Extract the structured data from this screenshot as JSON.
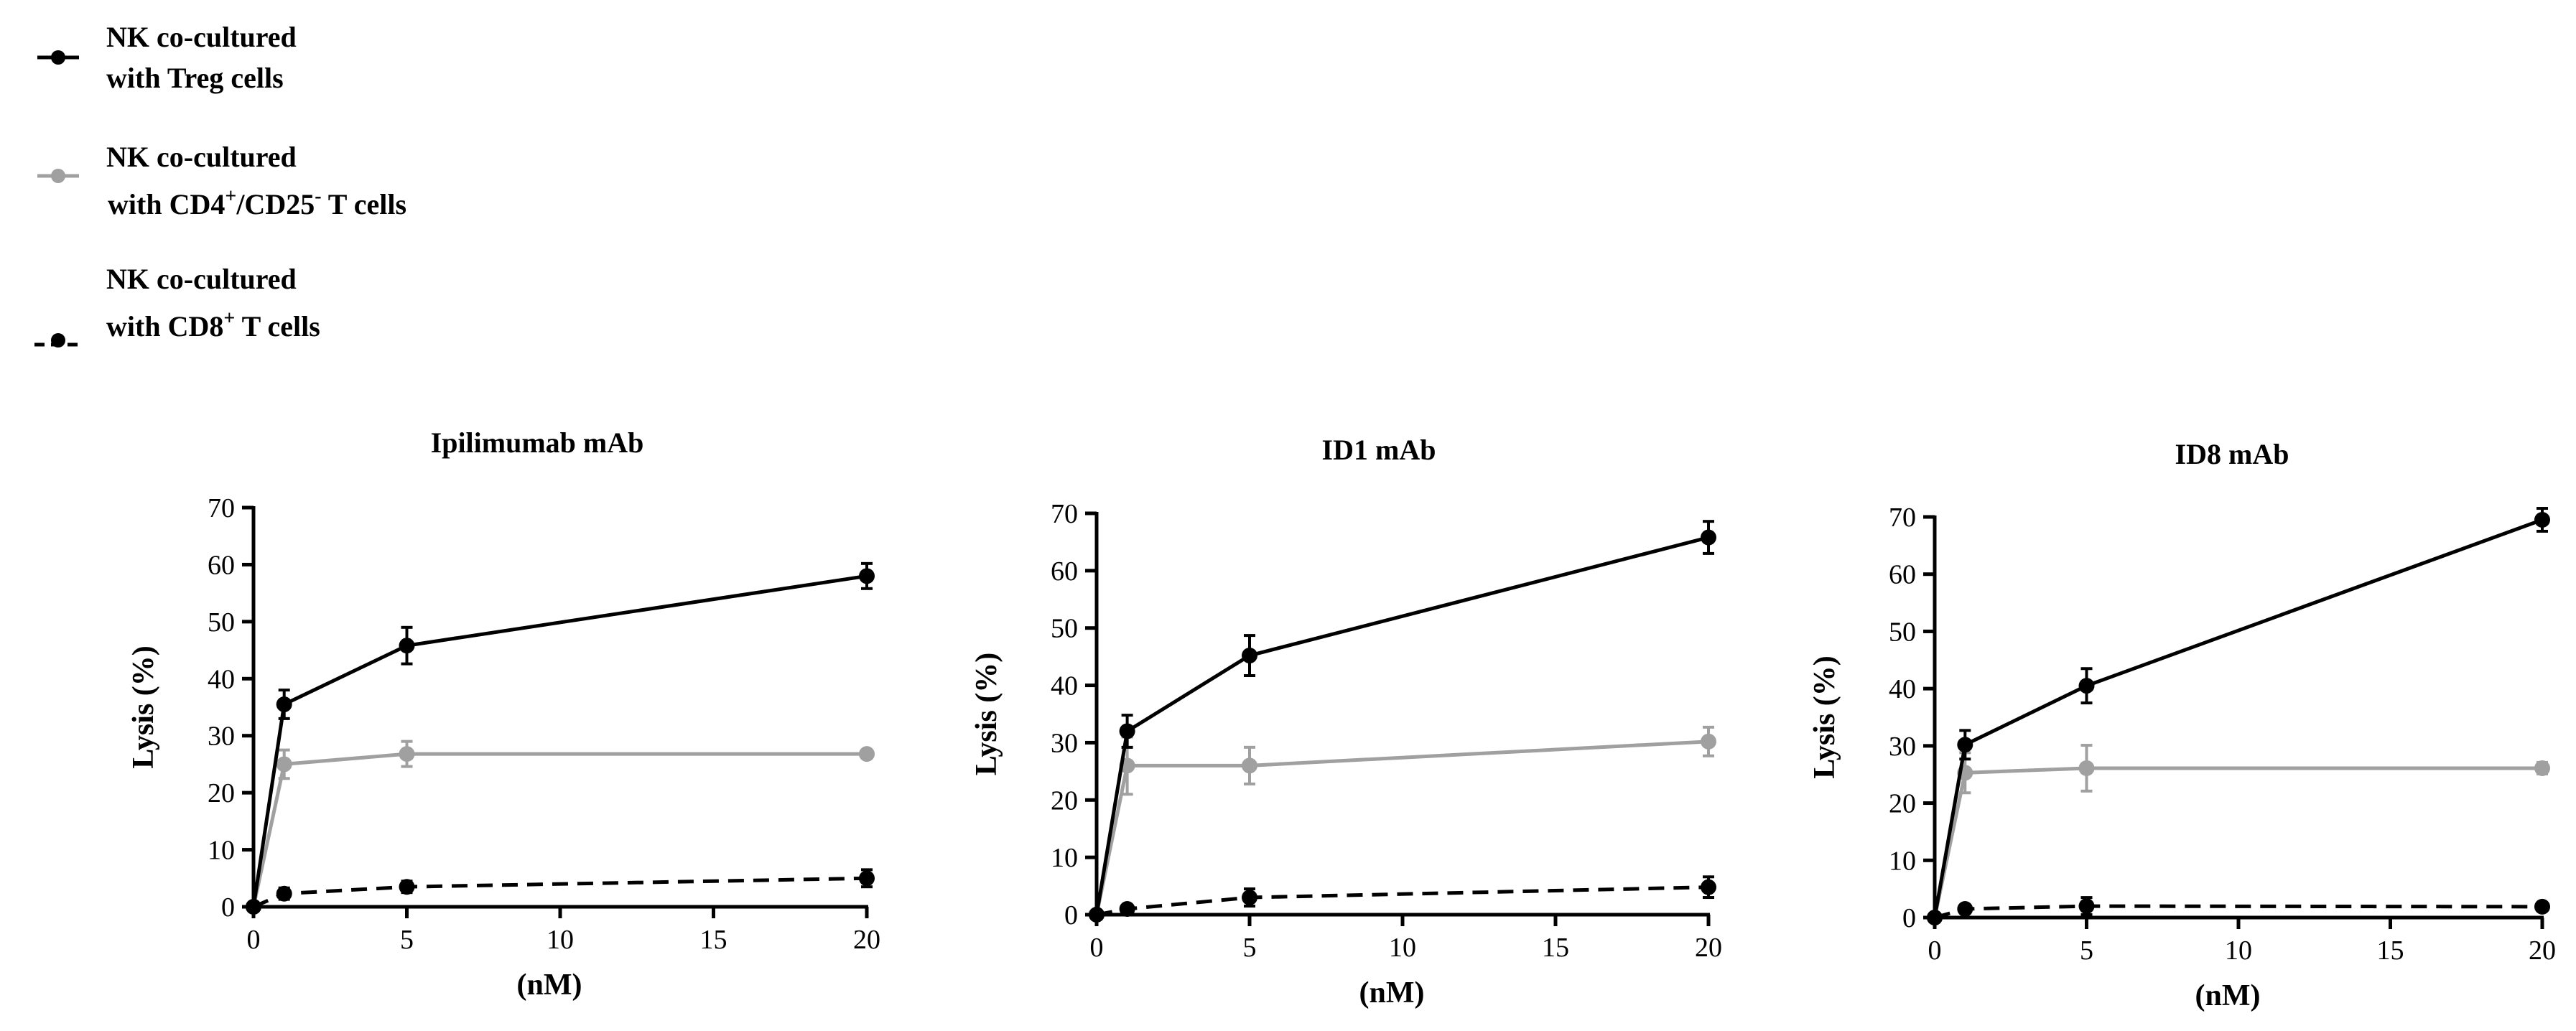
{
  "legend": {
    "items": [
      {
        "line1": "NK co-cultured",
        "line2": "with Treg cells",
        "color": "#000000",
        "dashed": false
      },
      {
        "line1": "NK co-cultured",
        "line2_parts": [
          " with CD4",
          "+",
          "/CD25",
          "-",
          " T cells"
        ],
        "color": "#a0a0a0",
        "dashed": false
      },
      {
        "line1": "NK co-cultured",
        "line2_parts": [
          "with CD8",
          "+",
          " T cells"
        ],
        "color": "#000000",
        "dashed": true
      }
    ]
  },
  "chart_data": [
    {
      "type": "line",
      "title": "Ipilimumab mAb",
      "xlabel": "(nM)",
      "ylabel": "Lysis (%)",
      "xlim": [
        0,
        20
      ],
      "ylim": [
        0,
        70
      ],
      "xticks": [
        0,
        5,
        10,
        15,
        20
      ],
      "yticks": [
        0,
        10,
        20,
        30,
        40,
        50,
        60,
        70
      ],
      "x": [
        0,
        1,
        5,
        20
      ],
      "series": [
        {
          "name": "NK co-cultured with Treg cells",
          "values": [
            0,
            35.5,
            45.8,
            58
          ],
          "errors": [
            0,
            2.5,
            3.2,
            2.2
          ],
          "color": "#000000",
          "dashed": false
        },
        {
          "name": "NK co-cultured with CD4+/CD25- T cells",
          "values": [
            0,
            25,
            26.8,
            26.8
          ],
          "errors": [
            0,
            2.5,
            2.2,
            0.5
          ],
          "color": "#a0a0a0",
          "dashed": false
        },
        {
          "name": "NK co-cultured with CD8+ T cells",
          "values": [
            0,
            2.3,
            3.5,
            5
          ],
          "errors": [
            0,
            1,
            1,
            1.5
          ],
          "color": "#000000",
          "dashed": true
        }
      ]
    },
    {
      "type": "line",
      "title": "ID1 mAb",
      "xlabel": "(nM)",
      "ylabel": "Lysis (%)",
      "xlim": [
        0,
        20
      ],
      "ylim": [
        0,
        70
      ],
      "xticks": [
        0,
        5,
        10,
        15,
        20
      ],
      "yticks": [
        0,
        10,
        20,
        30,
        40,
        50,
        60,
        70
      ],
      "x": [
        0,
        1,
        5,
        20
      ],
      "series": [
        {
          "name": "NK co-cultured with Treg cells",
          "values": [
            0,
            32,
            45.2,
            65.8
          ],
          "errors": [
            0,
            2.8,
            3.5,
            2.8
          ],
          "color": "#000000",
          "dashed": false
        },
        {
          "name": "NK co-cultured with CD4+/CD25- T cells",
          "values": [
            0,
            26,
            26,
            30.2
          ],
          "errors": [
            0,
            5,
            3.2,
            2.5
          ],
          "color": "#a0a0a0",
          "dashed": false
        },
        {
          "name": "NK co-cultured with CD8+ T cells",
          "values": [
            0,
            1,
            3,
            4.8
          ],
          "errors": [
            0,
            0.5,
            1.5,
            1.8
          ],
          "color": "#000000",
          "dashed": true
        }
      ]
    },
    {
      "type": "line",
      "title": "ID8 mAb",
      "xlabel": "(nM)",
      "ylabel": "Lysis (%)",
      "xlim": [
        0,
        20
      ],
      "ylim": [
        0,
        70
      ],
      "xticks": [
        0,
        5,
        10,
        15,
        20
      ],
      "yticks": [
        0,
        10,
        20,
        30,
        40,
        50,
        60,
        70
      ],
      "x": [
        0,
        1,
        5,
        20
      ],
      "series": [
        {
          "name": "NK co-cultured with Treg cells",
          "values": [
            0,
            30.2,
            40.5,
            69.5
          ],
          "errors": [
            0,
            2.5,
            3,
            2
          ],
          "color": "#000000",
          "dashed": false
        },
        {
          "name": "NK co-cultured with CD4+/CD25- T cells",
          "values": [
            0,
            25.3,
            26.1,
            26.1
          ],
          "errors": [
            0,
            3.5,
            4,
            1
          ],
          "color": "#a0a0a0",
          "dashed": false
        },
        {
          "name": "NK co-cultured with CD8+ T cells",
          "values": [
            0,
            1.5,
            2,
            1.9
          ],
          "errors": [
            0,
            0.5,
            1.5,
            0.3
          ],
          "color": "#000000",
          "dashed": true
        }
      ]
    }
  ]
}
